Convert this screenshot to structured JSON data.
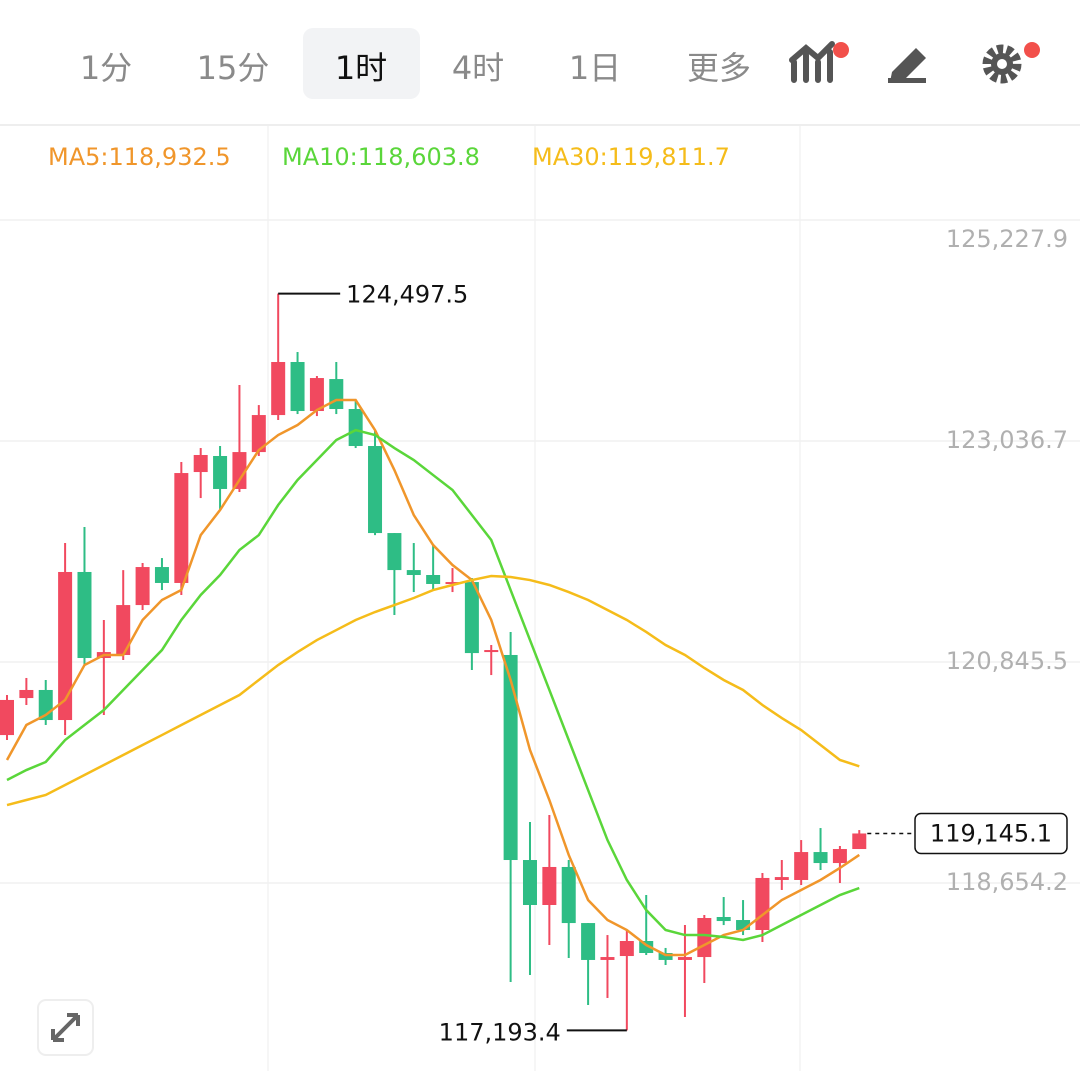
{
  "tabs": [
    "1分",
    "15分",
    "1时",
    "4时",
    "1日",
    "更多"
  ],
  "active_tab": 2,
  "chart_data": {
    "type": "candlestick",
    "up_color": "#f1495f",
    "down_color": "#2ebd85",
    "open": [
      120121,
      120488,
      120568,
      120270,
      121738,
      120885,
      120915,
      121410,
      121787,
      121629,
      122729,
      122888,
      122561,
      122927,
      123294,
      123820,
      123334,
      123651,
      123354,
      122987,
      122124,
      121757,
      121708,
      121619,
      121638,
      120944,
      120915,
      118882,
      118436,
      118813,
      118257,
      117891,
      117930,
      118079,
      117960,
      117891,
      117920,
      118317,
      118287,
      118188,
      118684,
      118684,
      118961,
      118852,
      118991
    ],
    "high": [
      120518,
      120687,
      120667,
      122025,
      122184,
      121262,
      121757,
      121827,
      121876,
      122828,
      122967,
      122987,
      123592,
      123393,
      124497.5,
      123919,
      123681,
      123820,
      123443,
      123145,
      122124,
      122025,
      122005,
      121777,
      121678,
      121014,
      121143,
      119259,
      119328,
      118882,
      118257,
      118138,
      118188,
      118535,
      118010,
      118238,
      118337,
      118515,
      118485,
      118753,
      118882,
      119080,
      119199,
      119021,
      119179
    ],
    "low": [
      120072,
      120419,
      120221,
      120121,
      120815,
      120320,
      120865,
      121361,
      121559,
      121510,
      122471,
      122352,
      122531,
      122888,
      123245,
      123304,
      123284,
      123304,
      122967,
      122104,
      121311,
      121539,
      121559,
      121539,
      120766,
      120716,
      117672,
      117742,
      118039,
      117910,
      117444,
      117514,
      117193.4,
      117940,
      117841,
      117325,
      117662,
      118237,
      118138,
      118069,
      118585,
      118634,
      118783,
      118654,
      118991
    ],
    "close": [
      120469,
      120568,
      120270,
      121738,
      120885,
      120944,
      121410,
      121787,
      121629,
      122719,
      122898,
      122561,
      122927,
      123294,
      123820,
      123334,
      123661,
      123354,
      122987,
      122124,
      121757,
      121708,
      121619,
      121638,
      120934,
      120964,
      118882,
      118436,
      118813,
      118257,
      117891,
      117920,
      118079,
      117960,
      117891,
      117920,
      118307,
      118277,
      118188,
      118704,
      118713,
      118961,
      118852,
      118991,
      119145.1
    ],
    "series": [
      {
        "name": "MA5:118,932.5",
        "color": "#f0962b",
        "values": [
          119874,
          120221,
          120320,
          120469,
          120815,
          120915,
          120915,
          121262,
          121460,
          121559,
          122104,
          122352,
          122650,
          122947,
          123096,
          123195,
          123344,
          123443,
          123443,
          123145,
          122749,
          122303,
          122005,
          121807,
          121658,
          121262,
          120667,
          119973,
          119477,
          118932,
          118485,
          118287,
          118188,
          118039,
          117940,
          117940,
          118039,
          118138,
          118188,
          118337,
          118485,
          118585,
          118684,
          118803,
          118932.5
        ]
      },
      {
        "name": "MA10:118,603.8",
        "color": "#5ad63a",
        "values": [
          119675,
          119774,
          119854,
          120072,
          120221,
          120369,
          120568,
          120766,
          120964,
          121262,
          121510,
          121708,
          121956,
          122104,
          122402,
          122650,
          122848,
          123046,
          123145,
          123096,
          122967,
          122848,
          122699,
          122551,
          122303,
          122055,
          121559,
          121063,
          120568,
          120072,
          119576,
          119080,
          118684,
          118386,
          118188,
          118138,
          118138,
          118119,
          118089,
          118138,
          118238,
          118337,
          118436,
          118535,
          118603.8
        ]
      },
      {
        "name": "MA30:119,811.7",
        "color": "#f5bc1a",
        "values": [
          119427,
          119477,
          119527,
          119626,
          119725,
          119824,
          119923,
          120022,
          120121,
          120221,
          120320,
          120419,
          120518,
          120667,
          120815,
          120944,
          121063,
          121162,
          121262,
          121341,
          121410,
          121480,
          121559,
          121609,
          121658,
          121698,
          121688,
          121658,
          121609,
          121539,
          121460,
          121361,
          121262,
          121143,
          121014,
          120915,
          120786,
          120667,
          120568,
          120419,
          120290,
          120171,
          120022,
          119874,
          119811.7
        ]
      }
    ],
    "ylim": [
      116790,
      126170
    ],
    "yticks": [
      {
        "value": 125227.9,
        "label": "125,227.9"
      },
      {
        "value": 123036.7,
        "label": "123,036.7"
      },
      {
        "value": 120845.5,
        "label": "120,845.5"
      },
      {
        "value": 118654.2,
        "label": "118,654.2"
      }
    ],
    "grid": true,
    "max_label": "124,497.5",
    "min_label": "117,193.4",
    "last_label": "119,145.1"
  }
}
